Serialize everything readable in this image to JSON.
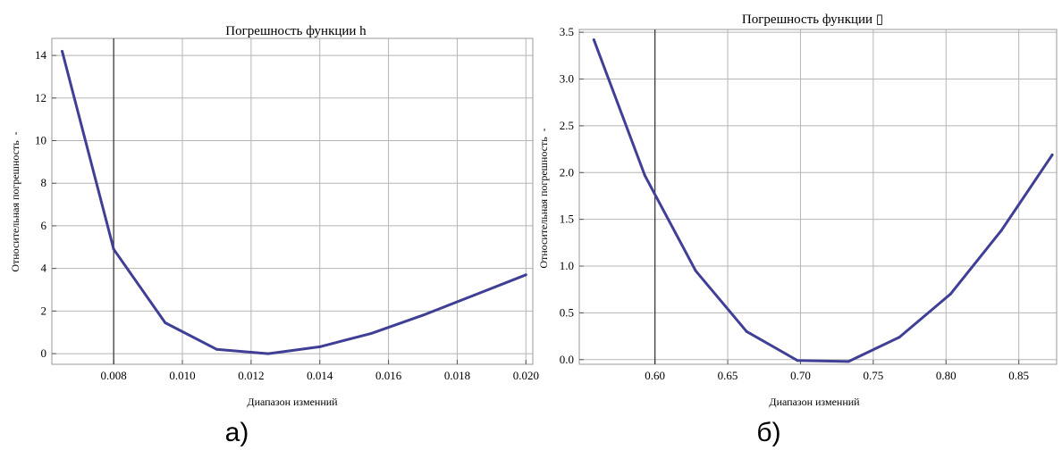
{
  "chart_data": [
    {
      "type": "line",
      "title": "Погрешность функции h",
      "xlabel": "Диапазон изменний",
      "ylabel": "Относительная погрешность  -",
      "caption": "а)",
      "xlim": [
        0.0062,
        0.0202
      ],
      "ylim": [
        -0.5,
        14.8
      ],
      "xticks": [
        0.008,
        0.01,
        0.012,
        0.014,
        0.016,
        0.018,
        0.02
      ],
      "xtick_labels": [
        "0.008",
        "0.010",
        "0.012",
        "0.014",
        "0.016",
        "0.018",
        "0.020"
      ],
      "yticks": [
        0,
        2,
        4,
        6,
        8,
        10,
        12,
        14
      ],
      "ytick_labels": [
        "0",
        "2",
        "4",
        "6",
        "8",
        "10",
        "12",
        "14"
      ],
      "vline": 0.008,
      "grid": true,
      "series": [
        {
          "color": "#3f3f96",
          "x": [
            0.0065,
            0.008,
            0.0095,
            0.011,
            0.0125,
            0.014,
            0.0155,
            0.017,
            0.0185,
            0.02
          ],
          "y": [
            14.2,
            4.9,
            1.45,
            0.2,
            0.0,
            0.32,
            0.95,
            1.8,
            2.75,
            3.7
          ]
        }
      ]
    },
    {
      "type": "line",
      "title": "Погрешность функции ▯",
      "xlabel": "Диапазон изменний",
      "ylabel": "Относительная погрешность  -",
      "caption": "б)",
      "xlim": [
        0.548,
        0.876
      ],
      "ylim": [
        -0.05,
        3.53
      ],
      "xticks": [
        0.6,
        0.65,
        0.7,
        0.75,
        0.8,
        0.85
      ],
      "xtick_labels": [
        "0.60",
        "0.65",
        "0.70",
        "0.75",
        "0.80",
        "0.85"
      ],
      "yticks": [
        0.0,
        0.5,
        1.0,
        1.5,
        2.0,
        2.5,
        3.0,
        3.5
      ],
      "ytick_labels": [
        "0.0",
        "0.5",
        "1.0",
        "1.5",
        "2.0",
        "2.5",
        "3.0",
        "3.5"
      ],
      "vline": 0.6,
      "grid": true,
      "series": [
        {
          "color": "#3f3f96",
          "x": [
            0.558,
            0.593,
            0.628,
            0.663,
            0.698,
            0.733,
            0.768,
            0.803,
            0.838,
            0.873
          ],
          "y": [
            3.42,
            1.97,
            0.95,
            0.3,
            -0.01,
            -0.02,
            0.24,
            0.7,
            1.38,
            2.19
          ]
        }
      ]
    }
  ]
}
